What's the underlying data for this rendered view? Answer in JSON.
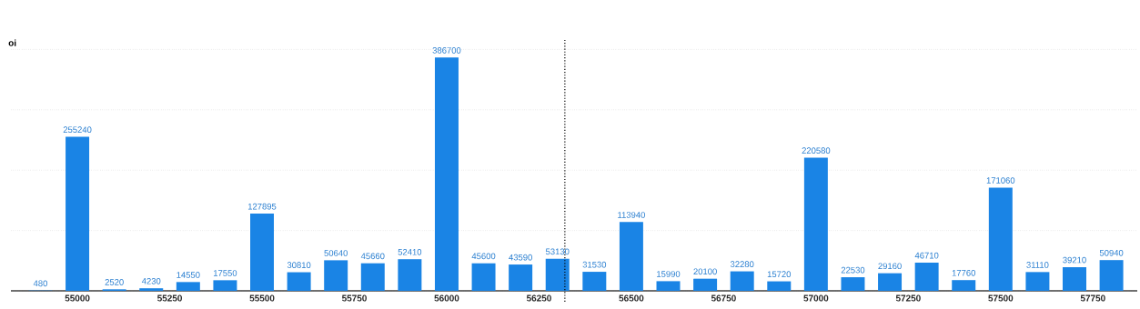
{
  "chart_data": {
    "type": "bar",
    "ylabel": "oi",
    "x": [
      54900,
      55000,
      55100,
      55200,
      55300,
      55400,
      55500,
      55600,
      55700,
      55800,
      55900,
      56000,
      56100,
      56200,
      56300,
      56400,
      56500,
      56600,
      56700,
      56800,
      56900,
      57000,
      57100,
      57200,
      57300,
      57400,
      57500,
      57600,
      57700,
      57800
    ],
    "values": [
      480,
      255240,
      2520,
      4230,
      14550,
      17550,
      127895,
      30810,
      50640,
      45660,
      52410,
      386700,
      45600,
      43590,
      53130,
      31530,
      113940,
      15990,
      20100,
      32280,
      15720,
      220580,
      22530,
      29160,
      46710,
      17760,
      171060,
      31110,
      39210,
      50940
    ],
    "color": "#1a84e5",
    "data_labels": true,
    "xlim": [
      54820,
      57870
    ],
    "xticks": [
      55000,
      55250,
      55500,
      55750,
      56000,
      56250,
      56500,
      56750,
      57000,
      57250,
      57500,
      57750
    ],
    "tick_labels": "x",
    "grid": "y",
    "ref_lines": [
      {
        "axis": "x",
        "value": 56320,
        "line_style": "dotted",
        "color": "#000000"
      }
    ]
  }
}
